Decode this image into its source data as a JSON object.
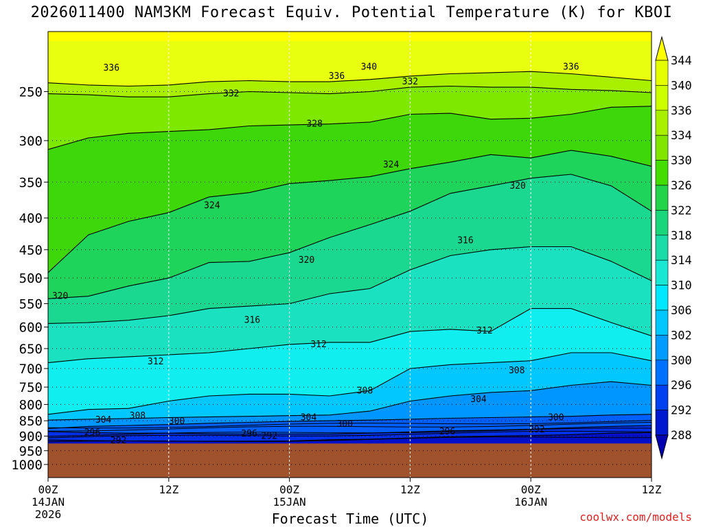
{
  "chart_data": {
    "type": "heatmap",
    "title": "2026011400 NAM3KM Forecast Equiv. Potential Temperature (K) for KBOI",
    "xlabel": "Forecast Time (UTC)",
    "ylabel": "",
    "x_ticks": [
      {
        "hours": 0,
        "label": "00Z",
        "date": "14JAN",
        "year": "2026"
      },
      {
        "hours": 12,
        "label": "12Z",
        "date": "",
        "year": ""
      },
      {
        "hours": 24,
        "label": "00Z",
        "date": "15JAN",
        "year": ""
      },
      {
        "hours": 36,
        "label": "12Z",
        "date": "",
        "year": ""
      },
      {
        "hours": 48,
        "label": "00Z",
        "date": "16JAN",
        "year": ""
      },
      {
        "hours": 60,
        "label": "12Z",
        "date": "",
        "year": ""
      }
    ],
    "xlim_hours": [
      0,
      60
    ],
    "y_ticks": [
      250,
      300,
      350,
      400,
      450,
      500,
      550,
      600,
      650,
      700,
      750,
      800,
      850,
      900,
      950,
      1000
    ],
    "ylim": [
      1050,
      200
    ],
    "y_scale": "log",
    "grid": "dotted",
    "surface_pressure_hpa": 925,
    "colorbar": {
      "levels": [
        "344",
        "340",
        "336",
        "334",
        "330",
        "326",
        "322",
        "318",
        "314",
        "310",
        "306",
        "302",
        "300",
        "296",
        "292",
        "288"
      ],
      "colors": [
        "#ffff00",
        "#e6ff00",
        "#ccff00",
        "#a8f000",
        "#80e600",
        "#44dd00",
        "#22d44a",
        "#1ad67a",
        "#1adca8",
        "#1ae6d4",
        "#00e8ff",
        "#00c8ff",
        "#009cff",
        "#0070ff",
        "#0040f0",
        "#0018d0",
        "#0000b0"
      ],
      "position": "right"
    },
    "ground_color": "#a0522d",
    "contours": [
      {
        "level": 336,
        "label": "336",
        "points": [
          [
            0,
            242
          ],
          [
            4,
            244
          ],
          [
            8,
            245
          ],
          [
            12,
            244
          ],
          [
            16,
            241
          ],
          [
            20,
            240
          ],
          [
            24,
            241
          ],
          [
            28,
            241
          ],
          [
            32,
            239
          ],
          [
            36,
            236
          ],
          [
            40,
            234
          ],
          [
            44,
            233
          ],
          [
            48,
            232
          ],
          [
            52,
            234
          ],
          [
            56,
            237
          ],
          [
            60,
            240
          ]
        ]
      },
      {
        "level": 332,
        "label": "332",
        "points": [
          [
            0,
            252
          ],
          [
            4,
            253
          ],
          [
            8,
            255
          ],
          [
            12,
            255
          ],
          [
            16,
            252
          ],
          [
            20,
            250
          ],
          [
            24,
            251
          ],
          [
            28,
            252
          ],
          [
            32,
            250
          ],
          [
            36,
            246
          ],
          [
            40,
            245
          ],
          [
            44,
            246
          ],
          [
            48,
            246
          ],
          [
            52,
            248
          ],
          [
            56,
            249
          ],
          [
            60,
            251
          ]
        ]
      },
      {
        "level": 328,
        "label": "328",
        "points": [
          [
            0,
            310
          ],
          [
            4,
            297
          ],
          [
            8,
            292
          ],
          [
            12,
            290
          ],
          [
            16,
            288
          ],
          [
            20,
            284
          ],
          [
            24,
            283
          ],
          [
            28,
            282
          ],
          [
            32,
            280
          ],
          [
            36,
            272
          ],
          [
            40,
            271
          ],
          [
            44,
            277
          ],
          [
            48,
            276
          ],
          [
            52,
            272
          ],
          [
            56,
            265
          ],
          [
            60,
            264
          ]
        ]
      },
      {
        "level": 324,
        "label": "324",
        "points": [
          [
            0,
            490
          ],
          [
            4,
            426
          ],
          [
            8,
            405
          ],
          [
            12,
            392
          ],
          [
            16,
            370
          ],
          [
            20,
            364
          ],
          [
            24,
            352
          ],
          [
            28,
            348
          ],
          [
            32,
            343
          ],
          [
            36,
            333
          ],
          [
            40,
            325
          ],
          [
            44,
            316
          ],
          [
            48,
            320
          ],
          [
            52,
            311
          ],
          [
            56,
            318
          ],
          [
            60,
            330
          ]
        ]
      },
      {
        "level": 320,
        "label": "320",
        "points": [
          [
            0,
            540
          ],
          [
            4,
            535
          ],
          [
            8,
            515
          ],
          [
            12,
            500
          ],
          [
            16,
            472
          ],
          [
            20,
            470
          ],
          [
            24,
            455
          ],
          [
            28,
            430
          ],
          [
            32,
            410
          ],
          [
            36,
            390
          ],
          [
            40,
            365
          ],
          [
            44,
            355
          ],
          [
            48,
            345
          ],
          [
            52,
            340
          ],
          [
            56,
            355
          ],
          [
            60,
            390
          ]
        ]
      },
      {
        "level": 316,
        "label": "316",
        "points": [
          [
            0,
            592
          ],
          [
            4,
            590
          ],
          [
            8,
            585
          ],
          [
            12,
            575
          ],
          [
            16,
            560
          ],
          [
            20,
            555
          ],
          [
            24,
            550
          ],
          [
            28,
            530
          ],
          [
            32,
            520
          ],
          [
            36,
            485
          ],
          [
            40,
            460
          ],
          [
            44,
            450
          ],
          [
            48,
            445
          ],
          [
            52,
            445
          ],
          [
            56,
            470
          ],
          [
            60,
            505
          ]
        ]
      },
      {
        "level": 312,
        "label": "312",
        "points": [
          [
            0,
            685
          ],
          [
            4,
            675
          ],
          [
            8,
            670
          ],
          [
            12,
            665
          ],
          [
            16,
            660
          ],
          [
            20,
            650
          ],
          [
            24,
            640
          ],
          [
            28,
            635
          ],
          [
            32,
            635
          ],
          [
            36,
            610
          ],
          [
            40,
            605
          ],
          [
            44,
            610
          ],
          [
            48,
            560
          ],
          [
            52,
            560
          ],
          [
            56,
            590
          ],
          [
            60,
            620
          ]
        ]
      },
      {
        "level": 308,
        "label": "308",
        "points": [
          [
            0,
            830
          ],
          [
            4,
            815
          ],
          [
            8,
            812
          ],
          [
            12,
            790
          ],
          [
            16,
            775
          ],
          [
            20,
            770
          ],
          [
            24,
            770
          ],
          [
            28,
            775
          ],
          [
            32,
            760
          ],
          [
            36,
            700
          ],
          [
            40,
            690
          ],
          [
            44,
            685
          ],
          [
            48,
            680
          ],
          [
            52,
            660
          ],
          [
            56,
            660
          ],
          [
            60,
            680
          ]
        ]
      },
      {
        "level": 304,
        "label": "304",
        "points": [
          [
            0,
            848
          ],
          [
            4,
            845
          ],
          [
            8,
            843
          ],
          [
            12,
            840
          ],
          [
            16,
            838
          ],
          [
            20,
            836
          ],
          [
            24,
            834
          ],
          [
            28,
            832
          ],
          [
            32,
            820
          ],
          [
            36,
            790
          ],
          [
            40,
            775
          ],
          [
            44,
            765
          ],
          [
            48,
            760
          ],
          [
            52,
            745
          ],
          [
            56,
            735
          ],
          [
            60,
            745
          ]
        ]
      },
      {
        "level": 300,
        "label": "300",
        "points": [
          [
            0,
            875
          ],
          [
            4,
            868
          ],
          [
            8,
            865
          ],
          [
            12,
            862
          ],
          [
            16,
            858
          ],
          [
            20,
            855
          ],
          [
            24,
            852
          ],
          [
            28,
            850
          ],
          [
            32,
            848
          ],
          [
            36,
            845
          ],
          [
            40,
            842
          ],
          [
            44,
            840
          ],
          [
            48,
            838
          ],
          [
            52,
            836
          ],
          [
            56,
            832
          ],
          [
            60,
            830
          ]
        ]
      },
      {
        "level": 296,
        "label": "296",
        "points": [
          [
            0,
            885
          ],
          [
            4,
            888
          ],
          [
            8,
            890
          ],
          [
            12,
            890
          ],
          [
            16,
            892
          ],
          [
            20,
            893
          ],
          [
            24,
            893
          ],
          [
            28,
            893
          ],
          [
            32,
            890
          ],
          [
            36,
            886
          ],
          [
            40,
            882
          ],
          [
            44,
            880
          ],
          [
            48,
            877
          ],
          [
            52,
            872
          ],
          [
            56,
            868
          ],
          [
            60,
            865
          ]
        ]
      },
      {
        "level": 292,
        "label": "292",
        "points": [
          [
            0,
            913
          ],
          [
            4,
            915
          ],
          [
            8,
            916
          ],
          [
            12,
            917
          ],
          [
            16,
            917
          ],
          [
            20,
            917
          ],
          [
            24,
            916
          ],
          [
            28,
            912
          ],
          [
            32,
            910
          ],
          [
            36,
            906
          ],
          [
            40,
            902
          ],
          [
            44,
            900
          ],
          [
            48,
            898
          ],
          [
            52,
            895
          ],
          [
            56,
            890
          ],
          [
            60,
            888
          ]
        ]
      }
    ],
    "contour_labels": [
      {
        "text": "336",
        "x": 6.3,
        "p": 229
      },
      {
        "text": "340",
        "x": 31.9,
        "p": 228
      },
      {
        "text": "336",
        "x": 28.7,
        "p": 236
      },
      {
        "text": "336",
        "x": 52.0,
        "p": 228
      },
      {
        "text": "332",
        "x": 36.0,
        "p": 241
      },
      {
        "text": "332",
        "x": 18.2,
        "p": 252
      },
      {
        "text": "328",
        "x": 26.5,
        "p": 282
      },
      {
        "text": "324",
        "x": 34.1,
        "p": 328
      },
      {
        "text": "320",
        "x": 46.7,
        "p": 355
      },
      {
        "text": "324",
        "x": 16.3,
        "p": 382
      },
      {
        "text": "316",
        "x": 41.5,
        "p": 435
      },
      {
        "text": "320",
        "x": 25.7,
        "p": 468
      },
      {
        "text": "320",
        "x": 1.2,
        "p": 535
      },
      {
        "text": "316",
        "x": 20.3,
        "p": 585
      },
      {
        "text": "312",
        "x": 43.4,
        "p": 608
      },
      {
        "text": "312",
        "x": 26.9,
        "p": 640
      },
      {
        "text": "312",
        "x": 10.7,
        "p": 682
      },
      {
        "text": "308",
        "x": 46.6,
        "p": 705
      },
      {
        "text": "308",
        "x": 31.5,
        "p": 760
      },
      {
        "text": "304",
        "x": 42.8,
        "p": 785
      },
      {
        "text": "308",
        "x": 8.9,
        "p": 835
      },
      {
        "text": "304",
        "x": 25.9,
        "p": 840
      },
      {
        "text": "300",
        "x": 50.5,
        "p": 840
      },
      {
        "text": "304",
        "x": 5.5,
        "p": 848
      },
      {
        "text": "300",
        "x": 12.8,
        "p": 852
      },
      {
        "text": "300",
        "x": 29.5,
        "p": 860
      },
      {
        "text": "292",
        "x": 48.6,
        "p": 878
      },
      {
        "text": "296",
        "x": 39.7,
        "p": 885
      },
      {
        "text": "296",
        "x": 4.4,
        "p": 888
      },
      {
        "text": "296",
        "x": 20.0,
        "p": 892
      },
      {
        "text": "292",
        "x": 22.0,
        "p": 900
      },
      {
        "text": "292",
        "x": 7.0,
        "p": 915
      }
    ]
  },
  "credit": "coolwx.com/models"
}
